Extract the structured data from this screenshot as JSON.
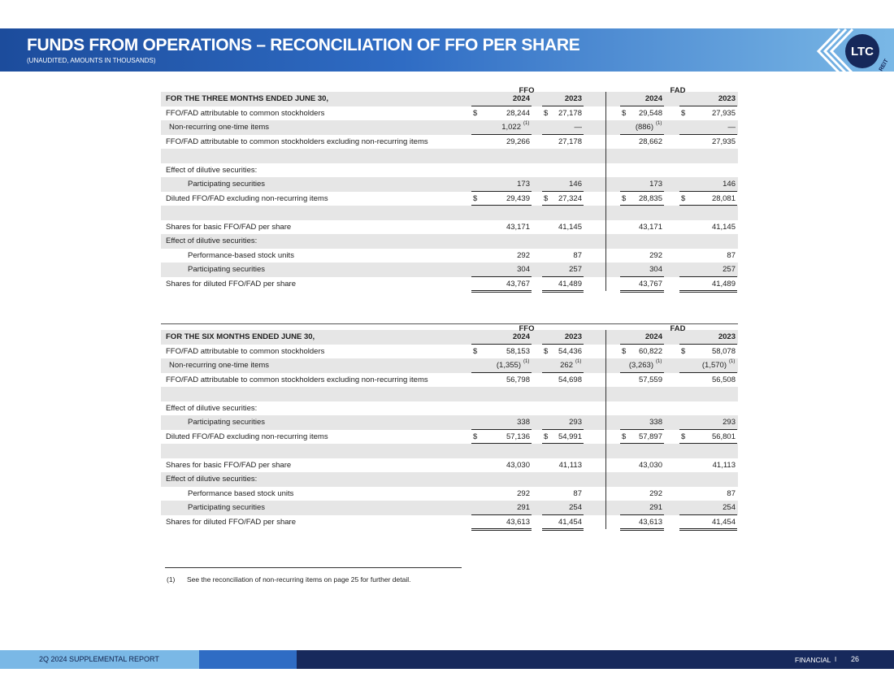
{
  "header": {
    "title": "FUNDS FROM OPERATIONS – RECONCILIATION OF FFO PER SHARE",
    "subtitle": "(UNAUDITED, AMOUNTS IN THOUSANDS)",
    "logo": "LTC",
    "logo_sub": "REIT"
  },
  "tables": [
    {
      "group_headers": [
        "FFO",
        "FAD"
      ],
      "period": "FOR THE THREE MONTHS ENDED JUNE 30,",
      "years": [
        "2024",
        "2023",
        "2024",
        "2023"
      ],
      "rows": [
        {
          "label": "FFO/FAD attributable to common stockholders",
          "indent": 0,
          "cells": [
            {
              "currency": "$",
              "amount": "28,244"
            },
            {
              "currency": "$",
              "amount": "27,178"
            },
            {
              "currency": "$",
              "amount": "29,548"
            },
            {
              "currency": "$",
              "amount": "27,935"
            }
          ]
        },
        {
          "label": "Non-recurring one-time items",
          "indent": 1,
          "underline": "single",
          "cells": [
            {
              "amount": "1,022",
              "note": "(1)"
            },
            {
              "amount": "—"
            },
            {
              "amount": "(886)",
              "note": "(1)"
            },
            {
              "amount": "—"
            }
          ]
        },
        {
          "label": "FFO/FAD attributable to common stockholders excluding non-recurring items",
          "indent": 0,
          "cells": [
            {
              "amount": "29,266"
            },
            {
              "amount": "27,178"
            },
            {
              "amount": "28,662"
            },
            {
              "amount": "27,935"
            }
          ]
        },
        null,
        {
          "label": "Effect of dilutive securities:",
          "indent": 0
        },
        {
          "label": "Participating securities",
          "indent": 2,
          "underline": "single",
          "cells": [
            {
              "amount": "173"
            },
            {
              "amount": "146"
            },
            {
              "amount": "173"
            },
            {
              "amount": "146"
            }
          ]
        },
        {
          "label": "Diluted FFO/FAD excluding non-recurring items",
          "indent": 0,
          "underline": "double",
          "cells": [
            {
              "currency": "$",
              "amount": "29,439"
            },
            {
              "currency": "$",
              "amount": "27,324"
            },
            {
              "currency": "$",
              "amount": "28,835"
            },
            {
              "currency": "$",
              "amount": "28,081"
            }
          ]
        },
        null,
        {
          "label": "Shares for basic FFO/FAD per share",
          "indent": 0,
          "cells": [
            {
              "amount": "43,171"
            },
            {
              "amount": "41,145"
            },
            {
              "amount": "43,171"
            },
            {
              "amount": "41,145"
            }
          ]
        },
        {
          "label": "Effect of dilutive securities:",
          "indent": 0
        },
        {
          "label": "Performance-based stock units",
          "indent": 2,
          "cells": [
            {
              "amount": "292"
            },
            {
              "amount": "87"
            },
            {
              "amount": "292"
            },
            {
              "amount": "87"
            }
          ]
        },
        {
          "label": "Participating securities",
          "indent": 2,
          "underline": "single",
          "cells": [
            {
              "amount": "304"
            },
            {
              "amount": "257"
            },
            {
              "amount": "304"
            },
            {
              "amount": "257"
            }
          ]
        },
        {
          "label": "Shares for diluted FFO/FAD per share",
          "indent": 0,
          "underline": "double",
          "cells": [
            {
              "amount": "43,767"
            },
            {
              "amount": "41,489"
            },
            {
              "amount": "43,767"
            },
            {
              "amount": "41,489"
            }
          ]
        }
      ]
    },
    {
      "group_headers": [
        "FFO",
        "FAD"
      ],
      "period": "FOR THE SIX MONTHS ENDED JUNE 30,",
      "years": [
        "2024",
        "2023",
        "2024",
        "2023"
      ],
      "rows": [
        {
          "label": "FFO/FAD attributable to common stockholders",
          "indent": 0,
          "cells": [
            {
              "currency": "$",
              "amount": "58,153"
            },
            {
              "currency": "$",
              "amount": "54,436"
            },
            {
              "currency": "$",
              "amount": "60,822"
            },
            {
              "currency": "$",
              "amount": "58,078"
            }
          ]
        },
        {
          "label": "Non-recurring one-time items",
          "indent": 1,
          "underline": "single",
          "cells": [
            {
              "amount": "(1,355)",
              "note": "(1)"
            },
            {
              "amount": "262",
              "note": "(1)"
            },
            {
              "amount": "(3,263)",
              "note": "(1)"
            },
            {
              "amount": "(1,570)",
              "note": "(1)"
            }
          ]
        },
        {
          "label": "FFO/FAD attributable to common stockholders excluding non-recurring items",
          "indent": 0,
          "cells": [
            {
              "amount": "56,798"
            },
            {
              "amount": "54,698"
            },
            {
              "amount": "57,559"
            },
            {
              "amount": "56,508"
            }
          ]
        },
        null,
        {
          "label": "Effect of dilutive securities:",
          "indent": 0
        },
        {
          "label": "Participating securities",
          "indent": 2,
          "underline": "single",
          "cells": [
            {
              "amount": "338"
            },
            {
              "amount": "293"
            },
            {
              "amount": "338"
            },
            {
              "amount": "293"
            }
          ]
        },
        {
          "label": "Diluted FFO/FAD excluding non-recurring items",
          "indent": 0,
          "underline": "double",
          "cells": [
            {
              "currency": "$",
              "amount": "57,136"
            },
            {
              "currency": "$",
              "amount": "54,991"
            },
            {
              "currency": "$",
              "amount": "57,897"
            },
            {
              "currency": "$",
              "amount": "56,801"
            }
          ]
        },
        null,
        {
          "label": "Shares for basic FFO/FAD per share",
          "indent": 0,
          "cells": [
            {
              "amount": "43,030"
            },
            {
              "amount": "41,113"
            },
            {
              "amount": "43,030"
            },
            {
              "amount": "41,113"
            }
          ]
        },
        {
          "label": "Effect of dilutive securities:",
          "indent": 0
        },
        {
          "label": "Performance based stock units",
          "indent": 2,
          "cells": [
            {
              "amount": "292"
            },
            {
              "amount": "87"
            },
            {
              "amount": "292"
            },
            {
              "amount": "87"
            }
          ]
        },
        {
          "label": "Participating securities",
          "indent": 2,
          "underline": "single",
          "cells": [
            {
              "amount": "291"
            },
            {
              "amount": "254"
            },
            {
              "amount": "291"
            },
            {
              "amount": "254"
            }
          ]
        },
        {
          "label": "Shares for diluted FFO/FAD per share",
          "indent": 0,
          "underline": "double",
          "cells": [
            {
              "amount": "43,613"
            },
            {
              "amount": "41,454"
            },
            {
              "amount": "43,613"
            },
            {
              "amount": "41,454"
            }
          ]
        }
      ]
    }
  ],
  "footnote": {
    "marker": "(1)",
    "text": "See the reconciliation of non-recurring items on page 25 for further detail."
  },
  "footer": {
    "left": "2Q 2024 SUPPLEMENTAL REPORT",
    "section": "FINANCIAL",
    "separator": "I",
    "page": "26"
  }
}
